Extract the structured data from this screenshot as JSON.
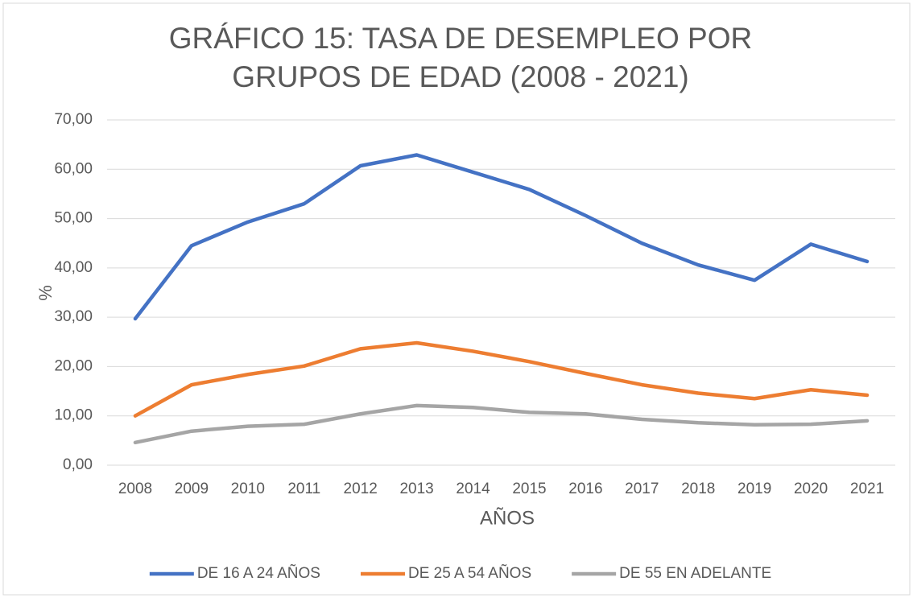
{
  "chart_data": {
    "type": "line",
    "title": [
      "GRÁFICO 15: TASA DE DESEMPLEO POR",
      "GRUPOS DE EDAD (2008 - 2021)"
    ],
    "x_label": "AÑOS",
    "y_label": "%",
    "categories": [
      "2008",
      "2009",
      "2010",
      "2011",
      "2012",
      "2013",
      "2014",
      "2015",
      "2016",
      "2017",
      "2018",
      "2019",
      "2020",
      "2021"
    ],
    "series": [
      {
        "name": "DE 16 A 24 AÑOS",
        "color": "#4472c4",
        "values": [
          29.7,
          44.5,
          49.3,
          53.0,
          60.7,
          62.9,
          59.4,
          55.9,
          50.6,
          45.0,
          40.6,
          37.5,
          44.8,
          41.3
        ]
      },
      {
        "name": "DE 25 A 54 AÑOS",
        "color": "#ed7d31",
        "values": [
          10.0,
          16.3,
          18.4,
          20.1,
          23.6,
          24.8,
          23.1,
          21.0,
          18.6,
          16.3,
          14.6,
          13.5,
          15.3,
          14.2
        ]
      },
      {
        "name": "DE 55 EN ADELANTE",
        "color": "#a5a5a5",
        "values": [
          4.6,
          6.9,
          7.9,
          8.3,
          10.4,
          12.1,
          11.7,
          10.7,
          10.4,
          9.3,
          8.6,
          8.2,
          8.3,
          9.0
        ]
      }
    ],
    "ylim": [
      0,
      70
    ],
    "yticks": [
      {
        "value": 0,
        "label": "0,00"
      },
      {
        "value": 10,
        "label": "10,00"
      },
      {
        "value": 20,
        "label": "20,00"
      },
      {
        "value": 30,
        "label": "30,00"
      },
      {
        "value": 40,
        "label": "40,00"
      },
      {
        "value": 50,
        "label": "50,00"
      },
      {
        "value": 60,
        "label": "60,00"
      },
      {
        "value": 70,
        "label": "70,00"
      }
    ],
    "grid": true,
    "legend": "bottom"
  }
}
